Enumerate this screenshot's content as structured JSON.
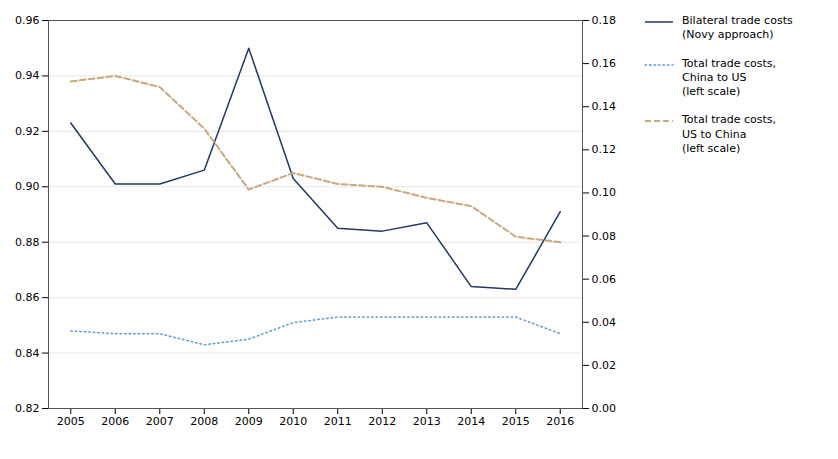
{
  "chart_data": {
    "type": "line",
    "x": [
      2005,
      2006,
      2007,
      2008,
      2009,
      2010,
      2011,
      2012,
      2013,
      2014,
      2015,
      2016
    ],
    "xlim": [
      2004.5,
      2016.5
    ],
    "xticks": [
      2005,
      2006,
      2007,
      2008,
      2009,
      2010,
      2011,
      2012,
      2013,
      2014,
      2015,
      2016
    ],
    "ylim": [
      0.82,
      0.96
    ],
    "yticks": [
      0.82,
      0.84,
      0.86,
      0.88,
      {
        "value": 0.9,
        "label": "0.90"
      },
      0.92,
      0.94,
      0.96
    ],
    "y2lim": [
      0.0,
      0.18
    ],
    "y2ticks": [
      {
        "value": 0,
        "label": "0.00"
      },
      0.02,
      0.04,
      0.06,
      0.08,
      {
        "value": 0.1,
        "label": "0.10"
      },
      0.12,
      0.14,
      0.16,
      0.18
    ],
    "grid": true,
    "legend": "right",
    "series": [
      {
        "name": "Bilateral trade costs\n(Novy approach)",
        "color": "#1f3864",
        "line_style": "solid",
        "values": [
          0.923,
          0.901,
          0.901,
          0.906,
          0.95,
          0.903,
          0.885,
          0.884,
          0.887,
          0.864,
          0.863,
          0.891
        ]
      },
      {
        "name": "Total trade costs,\nChina to US\n(left scale)",
        "color": "#5b9bd5",
        "line_style": "dotted",
        "values": [
          0.848,
          0.847,
          0.847,
          0.843,
          0.845,
          0.851,
          0.853,
          0.853,
          0.853,
          0.853,
          0.853,
          0.847
        ]
      },
      {
        "name": "Total trade costs,\nUS to China\n(left scale)",
        "color": "#c9a87c",
        "line_style": "dashed",
        "values": [
          0.938,
          0.94,
          0.936,
          0.921,
          0.899,
          0.905,
          0.901,
          0.9,
          0.896,
          0.893,
          0.882,
          0.88
        ]
      }
    ]
  }
}
